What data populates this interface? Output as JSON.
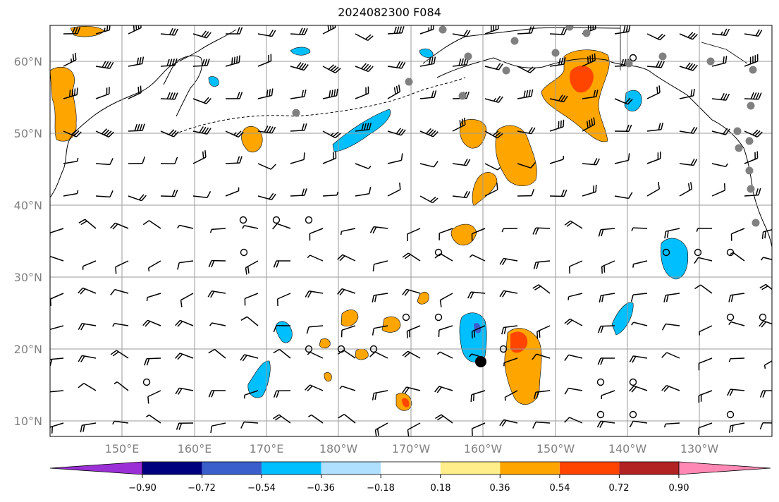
{
  "title": "2024082300 F084",
  "lat_labels": [
    "60°N",
    "50°N",
    "40°N",
    "30°N",
    "20°N",
    "10°N"
  ],
  "lon_labels": [
    "150°E",
    "160°E",
    "170°E",
    "180°W",
    "170°W",
    "160°W",
    "150°W",
    "140°W",
    "130°W"
  ],
  "colorbar": {
    "tick_labels": [
      "−0.90",
      "−0.72",
      "−0.54",
      "−0.36",
      "−0.18",
      "0.18",
      "0.36",
      "0.54",
      "0.72",
      "0.90"
    ],
    "colors": [
      "#9b30d6",
      "#00007f",
      "#3a5fcd",
      "#00bfff",
      "#b0e0ff",
      "#ffffff",
      "#ffee8a",
      "#ffa500",
      "#ff4500",
      "#b22222",
      "#ff89b4"
    ]
  },
  "marker": {
    "name": "storm-center",
    "lat": 18.2,
    "lon_w": 160.0
  }
}
